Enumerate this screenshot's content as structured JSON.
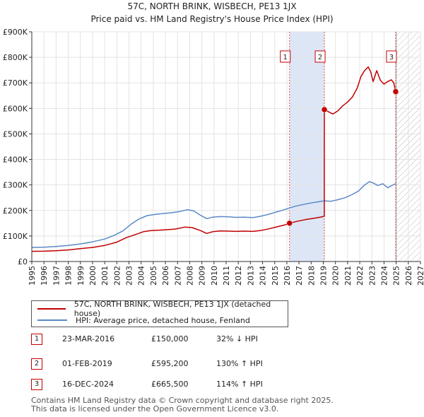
{
  "chart_data": {
    "type": "line",
    "title": "57C, NORTH BRINK, WISBECH, PE13 1JX",
    "subtitle": "Price paid vs. HM Land Registry's House Price Index (HPI)",
    "xlabel": "",
    "ylabel": "",
    "xlim": [
      1995,
      2027
    ],
    "ylim": [
      0,
      900000
    ],
    "x_ticks": [
      "1995",
      "1996",
      "1997",
      "1998",
      "1999",
      "2000",
      "2001",
      "2002",
      "2003",
      "2004",
      "2005",
      "2006",
      "2007",
      "2008",
      "2009",
      "2010",
      "2011",
      "2012",
      "2013",
      "2014",
      "2015",
      "2016",
      "2017",
      "2018",
      "2019",
      "2020",
      "2021",
      "2022",
      "2023",
      "2024",
      "2025",
      "2026",
      "2027"
    ],
    "y_ticks": [
      {
        "value": 0,
        "label": "£0"
      },
      {
        "value": 100000,
        "label": "£100K"
      },
      {
        "value": 200000,
        "label": "£200K"
      },
      {
        "value": 300000,
        "label": "£300K"
      },
      {
        "value": 400000,
        "label": "£400K"
      },
      {
        "value": 500000,
        "label": "£500K"
      },
      {
        "value": 600000,
        "label": "£600K"
      },
      {
        "value": 700000,
        "label": "£700K"
      },
      {
        "value": 800000,
        "label": "£800K"
      },
      {
        "value": 900000,
        "label": "£900K"
      }
    ],
    "grid": true,
    "shaded_band": {
      "from": 2016.22,
      "to": 2019.09,
      "color": "#dde6f7"
    },
    "future_hatch_from": 2025.0,
    "series": [
      {
        "name": "57C, NORTH BRINK, WISBECH, PE13 1JX (detached house)",
        "color": "#c00000",
        "points": [
          [
            1995.0,
            40000
          ],
          [
            1996.0,
            40500
          ],
          [
            1997.0,
            42000
          ],
          [
            1998.0,
            45500
          ],
          [
            1999.0,
            50500
          ],
          [
            2000.0,
            55000
          ],
          [
            2001.0,
            63000
          ],
          [
            2002.0,
            76000
          ],
          [
            2002.8,
            94000
          ],
          [
            2003.5,
            105000
          ],
          [
            2004.2,
            117000
          ],
          [
            2004.8,
            121000
          ],
          [
            2005.5,
            123000
          ],
          [
            2006.2,
            125000
          ],
          [
            2006.8,
            127000
          ],
          [
            2007.6,
            135000
          ],
          [
            2008.2,
            133000
          ],
          [
            2008.9,
            121000
          ],
          [
            2009.4,
            110000
          ],
          [
            2009.9,
            117000
          ],
          [
            2010.5,
            120000
          ],
          [
            2011.2,
            119000
          ],
          [
            2011.8,
            118000
          ],
          [
            2012.5,
            119000
          ],
          [
            2013.2,
            118000
          ],
          [
            2013.8,
            121000
          ],
          [
            2014.5,
            128000
          ],
          [
            2015.2,
            136000
          ],
          [
            2015.8,
            143000
          ],
          [
            2016.22,
            150000
          ],
          [
            2016.8,
            157000
          ],
          [
            2017.5,
            164000
          ],
          [
            2018.3,
            170000
          ],
          [
            2018.9,
            175000
          ],
          [
            2019.08,
            178000
          ],
          [
            2019.09,
            595200
          ],
          [
            2019.5,
            585000
          ],
          [
            2019.8,
            578000
          ],
          [
            2020.2,
            590000
          ],
          [
            2020.6,
            610000
          ],
          [
            2021.0,
            625000
          ],
          [
            2021.4,
            645000
          ],
          [
            2021.8,
            680000
          ],
          [
            2022.1,
            725000
          ],
          [
            2022.4,
            748000
          ],
          [
            2022.7,
            762000
          ],
          [
            2022.9,
            744000
          ],
          [
            2023.1,
            705000
          ],
          [
            2023.4,
            748000
          ],
          [
            2023.7,
            710000
          ],
          [
            2024.0,
            695000
          ],
          [
            2024.3,
            705000
          ],
          [
            2024.6,
            712000
          ],
          [
            2024.8,
            700000
          ],
          [
            2024.96,
            665500
          ]
        ]
      },
      {
        "name": "HPI: Average price, detached house, Fenland",
        "color": "#5a8ac6",
        "points": [
          [
            1995.0,
            55000
          ],
          [
            1996.0,
            56000
          ],
          [
            1997.0,
            59000
          ],
          [
            1998.0,
            63000
          ],
          [
            1999.0,
            69000
          ],
          [
            2000.0,
            77000
          ],
          [
            2001.0,
            88000
          ],
          [
            2001.8,
            103000
          ],
          [
            2002.5,
            120000
          ],
          [
            2003.2,
            147000
          ],
          [
            2003.8,
            166000
          ],
          [
            2004.5,
            180000
          ],
          [
            2005.2,
            185000
          ],
          [
            2005.8,
            188000
          ],
          [
            2006.5,
            191000
          ],
          [
            2007.2,
            196000
          ],
          [
            2007.8,
            203000
          ],
          [
            2008.3,
            199000
          ],
          [
            2008.9,
            181000
          ],
          [
            2009.4,
            168000
          ],
          [
            2009.9,
            174000
          ],
          [
            2010.5,
            176000
          ],
          [
            2011.2,
            175000
          ],
          [
            2011.8,
            173000
          ],
          [
            2012.5,
            174000
          ],
          [
            2013.2,
            172000
          ],
          [
            2013.8,
            177000
          ],
          [
            2014.5,
            185000
          ],
          [
            2015.2,
            195000
          ],
          [
            2015.8,
            203000
          ],
          [
            2016.22,
            210000
          ],
          [
            2016.8,
            218000
          ],
          [
            2017.5,
            225000
          ],
          [
            2018.3,
            232000
          ],
          [
            2019.09,
            238000
          ],
          [
            2019.6,
            236000
          ],
          [
            2020.2,
            242000
          ],
          [
            2020.8,
            250000
          ],
          [
            2021.4,
            263000
          ],
          [
            2021.9,
            276000
          ],
          [
            2022.4,
            300000
          ],
          [
            2022.8,
            313000
          ],
          [
            2023.1,
            308000
          ],
          [
            2023.5,
            298000
          ],
          [
            2023.9,
            305000
          ],
          [
            2024.3,
            289000
          ],
          [
            2024.7,
            299000
          ],
          [
            2024.96,
            305000
          ]
        ]
      }
    ],
    "markers": [
      {
        "label": "1",
        "x": 2016.22,
        "y": 150000
      },
      {
        "label": "2",
        "x": 2019.09,
        "y": 595200
      },
      {
        "label": "3",
        "x": 2024.96,
        "y": 665500
      }
    ]
  },
  "legend": {
    "items": [
      {
        "label": "57C, NORTH BRINK, WISBECH, PE13 1JX (detached house)",
        "color": "#c00000"
      },
      {
        "label": "HPI: Average price, detached house, Fenland",
        "color": "#5a8ac6"
      }
    ]
  },
  "sales": [
    {
      "num": "1",
      "date": "23-MAR-2016",
      "price": "£150,000",
      "hpi": "32% ↓ HPI"
    },
    {
      "num": "2",
      "date": "01-FEB-2019",
      "price": "£595,200",
      "hpi": "130% ↑ HPI"
    },
    {
      "num": "3",
      "date": "16-DEC-2024",
      "price": "£665,500",
      "hpi": "114% ↑ HPI"
    }
  ],
  "footer": {
    "line1": "Contains HM Land Registry data © Crown copyright and database right 2025.",
    "line2": "This data is licensed under the Open Government Licence v3.0."
  }
}
